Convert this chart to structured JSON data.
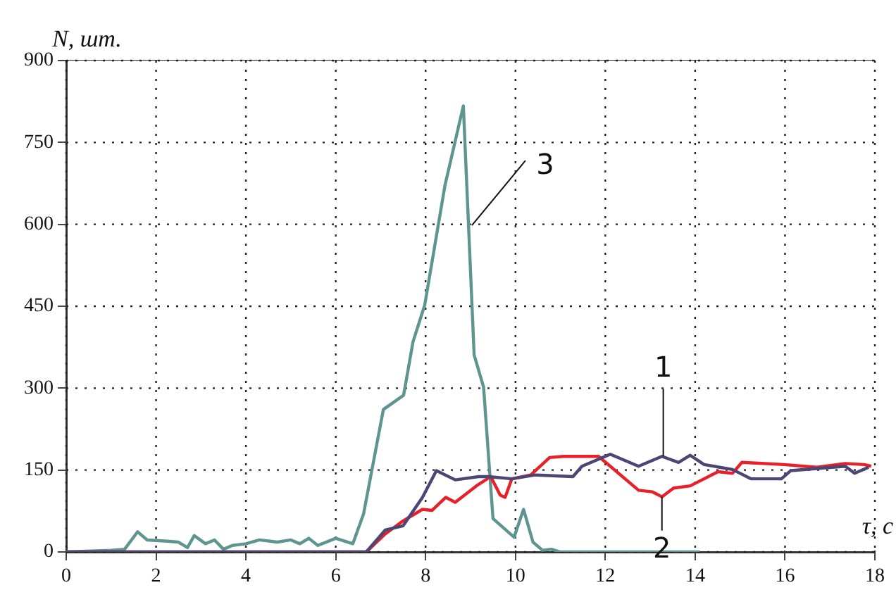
{
  "chart_data": {
    "type": "line",
    "xlabel": "τ, с",
    "ylabel": "N, шт.",
    "xlim": [
      0,
      18
    ],
    "xticks": [
      0,
      2,
      4,
      6,
      8,
      10,
      12,
      14,
      16,
      18
    ],
    "ylim": [
      0,
      900
    ],
    "yticks": [
      0,
      150,
      300,
      450,
      600,
      750,
      900
    ],
    "grid": true,
    "legend": false,
    "marker": "none",
    "line_style": "solid",
    "series": [
      {
        "color": "#4b4673",
        "x": [
          0,
          6.68,
          7.1,
          7.5,
          7.93,
          8.24,
          8.66,
          9.18,
          9.4,
          9.92,
          10.44,
          11.28,
          11.48,
          12.11,
          12.74,
          13.26,
          13.63,
          13.89,
          14.2,
          14.83,
          15.24,
          15.92,
          16.13,
          17.34,
          17.55,
          17.86
        ],
        "values": [
          0,
          0,
          40,
          48,
          100,
          149,
          132,
          138,
          138,
          134,
          141,
          138,
          157,
          179,
          157,
          175,
          164,
          177,
          160,
          151,
          134,
          134,
          149,
          157,
          144,
          155
        ]
      },
      {
        "color": "#e8202a",
        "x": [
          0,
          6.68,
          7.1,
          7.5,
          7.93,
          8.14,
          8.45,
          8.66,
          9.13,
          9.45,
          9.66,
          9.77,
          9.92,
          10.34,
          10.76,
          11.07,
          11.85,
          12.74,
          13.05,
          13.26,
          13.52,
          13.89,
          14.51,
          14.83,
          15.04,
          15.98,
          16.71,
          17.34,
          17.76,
          17.92
        ],
        "values": [
          0,
          0,
          33,
          57,
          78,
          76,
          100,
          91,
          121,
          138,
          104,
          100,
          134,
          141,
          173,
          175,
          175,
          113,
          110,
          101,
          117,
          121,
          147,
          144,
          164,
          160,
          155,
          162,
          160,
          157
        ]
      },
      {
        "color": "#5f9590",
        "x": [
          0,
          1.0,
          1.3,
          1.59,
          1.8,
          2.2,
          2.5,
          2.7,
          2.85,
          3.1,
          3.3,
          3.5,
          3.7,
          4.0,
          4.3,
          4.7,
          5.0,
          5.2,
          5.4,
          5.6,
          6.0,
          6.38,
          6.62,
          7.06,
          7.51,
          7.72,
          7.98,
          8.43,
          8.84,
          9.08,
          9.29,
          9.5,
          9.97,
          10.18,
          10.39,
          10.6,
          10.8,
          11.0,
          14.1
        ],
        "values": [
          0,
          3,
          5,
          37,
          22,
          20,
          18,
          8,
          30,
          15,
          22,
          5,
          12,
          15,
          22,
          18,
          22,
          15,
          25,
          12,
          25,
          15,
          70,
          261,
          287,
          385,
          452,
          671,
          817,
          361,
          302,
          61,
          27,
          78,
          18,
          3,
          5,
          0,
          0
        ]
      }
    ],
    "annotations": [
      {
        "text": "3",
        "x": 9.03,
        "y": 598
      },
      {
        "text": "1",
        "x": 13.29,
        "y": 175
      },
      {
        "text": "2",
        "x": 13.26,
        "y": 101
      }
    ]
  }
}
